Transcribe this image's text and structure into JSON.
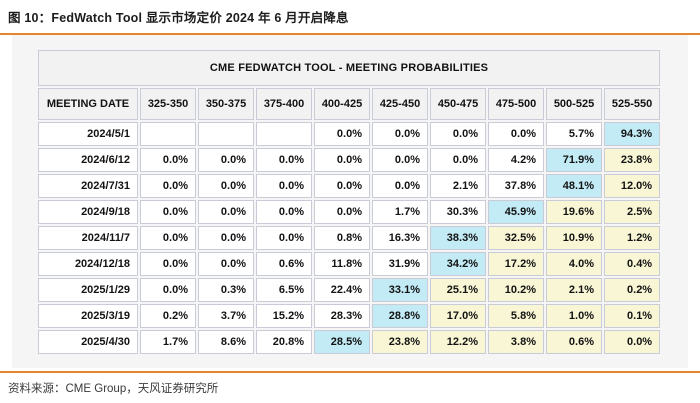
{
  "figure": {
    "title": "图 10：FedWatch Tool 显示市场定价 2024 年 6 月开启降息",
    "source": "资料来源：CME Group，天风证券研究所"
  },
  "table": {
    "title": "CME FEDWATCH TOOL - MEETING PROBABILITIES",
    "columns": [
      "MEETING DATE",
      "325-350",
      "350-375",
      "375-400",
      "400-425",
      "425-450",
      "450-475",
      "475-500",
      "500-525",
      "525-550"
    ],
    "rows": [
      {
        "date": "2024/5/1",
        "values": [
          "",
          "",
          "",
          "0.0%",
          "0.0%",
          "0.0%",
          "0.0%",
          "5.7%",
          "94.3%"
        ],
        "highlights": [
          "",
          "",
          "",
          "",
          "",
          "",
          "",
          "",
          "cyan"
        ]
      },
      {
        "date": "2024/6/12",
        "values": [
          "0.0%",
          "0.0%",
          "0.0%",
          "0.0%",
          "0.0%",
          "0.0%",
          "4.2%",
          "71.9%",
          "23.8%"
        ],
        "highlights": [
          "",
          "",
          "",
          "",
          "",
          "",
          "",
          "cyan",
          "yellow"
        ]
      },
      {
        "date": "2024/7/31",
        "values": [
          "0.0%",
          "0.0%",
          "0.0%",
          "0.0%",
          "0.0%",
          "2.1%",
          "37.8%",
          "48.1%",
          "12.0%"
        ],
        "highlights": [
          "",
          "",
          "",
          "",
          "",
          "",
          "",
          "cyan",
          "yellow"
        ]
      },
      {
        "date": "2024/9/18",
        "values": [
          "0.0%",
          "0.0%",
          "0.0%",
          "0.0%",
          "1.7%",
          "30.3%",
          "45.9%",
          "19.6%",
          "2.5%"
        ],
        "highlights": [
          "",
          "",
          "",
          "",
          "",
          "",
          "cyan",
          "yellow",
          "yellow"
        ]
      },
      {
        "date": "2024/11/7",
        "values": [
          "0.0%",
          "0.0%",
          "0.0%",
          "0.8%",
          "16.3%",
          "38.3%",
          "32.5%",
          "10.9%",
          "1.2%"
        ],
        "highlights": [
          "",
          "",
          "",
          "",
          "",
          "cyan",
          "yellow",
          "yellow",
          "yellow"
        ]
      },
      {
        "date": "2024/12/18",
        "values": [
          "0.0%",
          "0.0%",
          "0.6%",
          "11.8%",
          "31.9%",
          "34.2%",
          "17.2%",
          "4.0%",
          "0.4%"
        ],
        "highlights": [
          "",
          "",
          "",
          "",
          "",
          "cyan",
          "yellow",
          "yellow",
          "yellow"
        ]
      },
      {
        "date": "2025/1/29",
        "values": [
          "0.0%",
          "0.3%",
          "6.5%",
          "22.4%",
          "33.1%",
          "25.1%",
          "10.2%",
          "2.1%",
          "0.2%"
        ],
        "highlights": [
          "",
          "",
          "",
          "",
          "cyan",
          "yellow",
          "yellow",
          "yellow",
          "yellow"
        ]
      },
      {
        "date": "2025/3/19",
        "values": [
          "0.2%",
          "3.7%",
          "15.2%",
          "28.3%",
          "28.8%",
          "17.0%",
          "5.8%",
          "1.0%",
          "0.1%"
        ],
        "highlights": [
          "",
          "",
          "",
          "",
          "cyan",
          "yellow",
          "yellow",
          "yellow",
          "yellow"
        ]
      },
      {
        "date": "2025/4/30",
        "values": [
          "1.7%",
          "8.6%",
          "20.8%",
          "28.5%",
          "23.8%",
          "12.2%",
          "3.8%",
          "0.6%",
          "0.0%"
        ],
        "highlights": [
          "",
          "",
          "",
          "cyan",
          "yellow",
          "yellow",
          "yellow",
          "yellow",
          "yellow"
        ]
      }
    ]
  },
  "colors": {
    "accent_orange": "#e8832f",
    "highlight_cyan": "#c2ebf5",
    "highlight_yellow": "#f8f6d4"
  }
}
